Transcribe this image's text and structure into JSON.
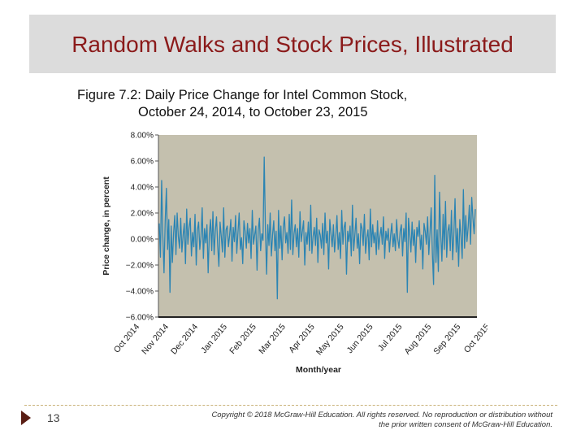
{
  "slide": {
    "title": "Random Walks and Stock Prices, Illustrated",
    "figure_caption_line1": "Figure 7.2: Daily Price Change for Intel Common Stock,",
    "figure_caption_line2": "October 24, 2014, to October 23, 2015",
    "page_number": "13",
    "copyright_line1": "Copyright © 2018 McGraw-Hill Education. All rights reserved. No reproduction or distribution without",
    "copyright_line2": "the prior written consent of McGraw-Hill Education."
  },
  "chart_data": {
    "type": "line",
    "title": "",
    "xlabel": "Month/year",
    "ylabel": "Price change, in percent",
    "ylim": [
      -6,
      8
    ],
    "y_ticks": [
      "8.00%",
      "6.00%",
      "4.00%",
      "2.00%",
      "0.00%",
      "−2.00%",
      "−4.00%",
      "−6.00%"
    ],
    "x_ticks": [
      "Oct 2014",
      "Nov 2014",
      "Dec 2014",
      "Jan 2015",
      "Feb 2015",
      "Mar 2015",
      "Apr 2015",
      "May 2015",
      "Jun 2015",
      "Jul 2015",
      "Aug 2015",
      "Sep 2015",
      "Oct 2015"
    ],
    "grid": false,
    "colors": {
      "plot_background": "#c4c0ae",
      "line": "#2b84b3"
    },
    "series": [
      {
        "values": [
          1.2,
          -1.4,
          4.5,
          0.3,
          -2.6,
          1.4,
          3.9,
          -0.8,
          1.5,
          -4.1,
          1.0,
          -1.8,
          0.4,
          1.8,
          -1.2,
          2.0,
          0.2,
          -0.7,
          1.6,
          -1.0,
          0.3,
          1.2,
          -1.9,
          2.3,
          -0.4,
          0.9,
          1.6,
          -1.3,
          0.5,
          -0.6,
          1.9,
          -2.0,
          0.7,
          1.3,
          -0.8,
          0.2,
          2.4,
          -1.5,
          0.8,
          -0.3,
          1.1,
          -2.6,
          0.4,
          1.5,
          -0.9,
          2.1,
          -1.2,
          0.6,
          1.7,
          -0.5,
          -2.1,
          1.3,
          0.2,
          -1.0,
          2.4,
          -1.4,
          0.7,
          1.0,
          -0.6,
          0.3,
          1.5,
          -1.7,
          0.9,
          -0.2,
          1.8,
          -1.1,
          0.5,
          2.0,
          -0.8,
          0.1,
          -1.9,
          1.4,
          0.6,
          -0.7,
          1.2,
          -0.3,
          0.8,
          -1.5,
          2.2,
          -0.4,
          0.3,
          1.0,
          -2.4,
          0.7,
          1.6,
          -0.9,
          0.4,
          -0.1,
          6.3,
          0.8,
          -2.7,
          1.1,
          -0.5,
          2.0,
          -1.3,
          0.3,
          1.4,
          -0.9,
          0.6,
          -4.6,
          2.2,
          -0.7,
          1.0,
          -1.6,
          0.9,
          1.7,
          -0.3,
          0.5,
          -1.1,
          1.9,
          -0.8,
          3.0,
          -1.2,
          0.4,
          1.1,
          -0.6,
          0.8,
          -1.4,
          2.1,
          -0.2,
          0.6,
          1.4,
          -2.0,
          0.5,
          -0.4,
          1.3,
          -0.9,
          2.6,
          -1.1,
          0.2,
          0.9,
          -0.5,
          1.6,
          -1.8,
          0.7,
          0.3,
          -0.7,
          1.2,
          -1.2,
          2.0,
          -0.3,
          0.6,
          -2.3,
          1.5,
          0.4,
          -0.6,
          1.1,
          -1.0,
          0.2,
          1.8,
          -0.8,
          0.5,
          -1.5,
          2.2,
          -0.4,
          0.9,
          1.3,
          -2.7,
          0.6,
          -0.2,
          1.0,
          -1.3,
          2.6,
          -0.9,
          0.3,
          1.6,
          -0.7,
          0.4,
          -1.9,
          1.2,
          0.8,
          -0.5,
          1.9,
          -1.1,
          0.1,
          0.7,
          -1.6,
          2.3,
          -0.6,
          1.1,
          -0.3,
          0.5,
          -1.2,
          1.4,
          -0.8,
          0.2,
          0.9,
          -0.4,
          1.7,
          -1.5,
          0.6,
          -0.1,
          0.8,
          -1.0,
          0.3,
          1.2,
          -0.6,
          0.4,
          -0.9,
          1.5,
          0.0,
          -0.7,
          0.6,
          1.1,
          -1.3,
          0.8,
          -0.2,
          2.0,
          -4.1,
          1.6,
          0.4,
          -1.0,
          1.3,
          -0.5,
          0.7,
          -1.8,
          0.9,
          0.2,
          1.4,
          -0.8,
          0.3,
          -2.3,
          1.2,
          0.6,
          -0.4,
          1.7,
          -1.2,
          0.5,
          2.4,
          -1.1,
          -3.5,
          4.9,
          -1.8,
          0.7,
          -2.5,
          3.6,
          0.3,
          -1.7,
          1.9,
          -0.8,
          2.9,
          -1.4,
          0.6,
          1.1,
          -0.9,
          2.2,
          -1.6,
          0.4,
          3.1,
          -1.0,
          0.8,
          -2.1,
          1.5,
          0.2,
          -1.5,
          3.8,
          -0.7,
          1.8,
          -0.2,
          0.9,
          2.6,
          -0.4,
          3.2,
          1.6,
          0.4,
          2.3
        ]
      }
    ]
  }
}
